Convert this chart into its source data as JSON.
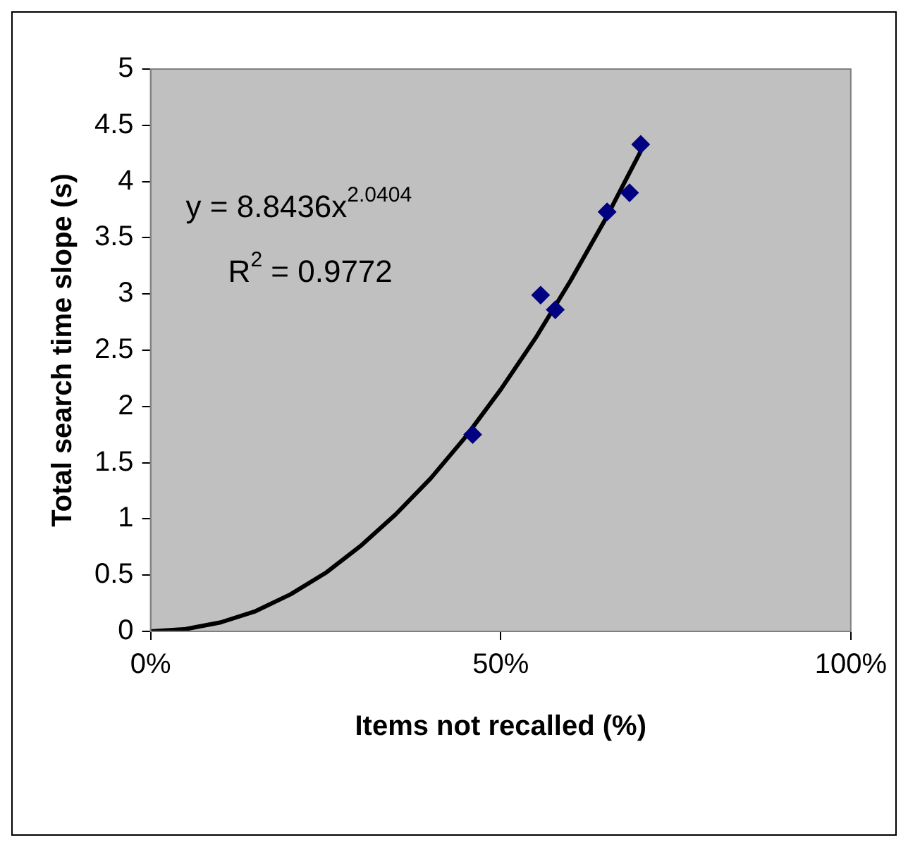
{
  "chart_data": {
    "type": "scatter",
    "xlabel": "Items not recalled (%)",
    "ylabel": "Total search time slope (s)",
    "xlim": [
      0,
      100
    ],
    "xticks": [
      {
        "value": 0,
        "label": "0%"
      },
      {
        "value": 50,
        "label": "50%"
      },
      {
        "value": 100,
        "label": "100%"
      }
    ],
    "ylim": [
      0,
      5
    ],
    "yticks": [
      0,
      0.5,
      1,
      1.5,
      2,
      2.5,
      3,
      3.5,
      4,
      4.5,
      5
    ],
    "grid": false,
    "legend": false,
    "marker": "diamond",
    "annotations": [
      "y = 8.8436x$^{2.0404}$",
      "R$^{2}$ = 0.9772"
    ],
    "series": [
      {
        "type": "scatter",
        "color": "#000080",
        "x": [
          46,
          55.7,
          57.8,
          65.2,
          68.4,
          70
        ],
        "values": [
          1.75,
          2.99,
          2.86,
          3.73,
          3.9,
          4.33
        ]
      },
      {
        "type": "line",
        "color": "#000000",
        "marker": "none",
        "x": [
          0,
          5,
          10,
          15,
          20,
          25,
          30,
          35,
          40,
          45,
          50,
          55,
          60,
          65,
          70
        ],
        "values": [
          0,
          0.02,
          0.08,
          0.18,
          0.33,
          0.52,
          0.76,
          1.04,
          1.36,
          1.73,
          2.15,
          2.61,
          3.12,
          3.67,
          4.27
        ]
      }
    ]
  }
}
